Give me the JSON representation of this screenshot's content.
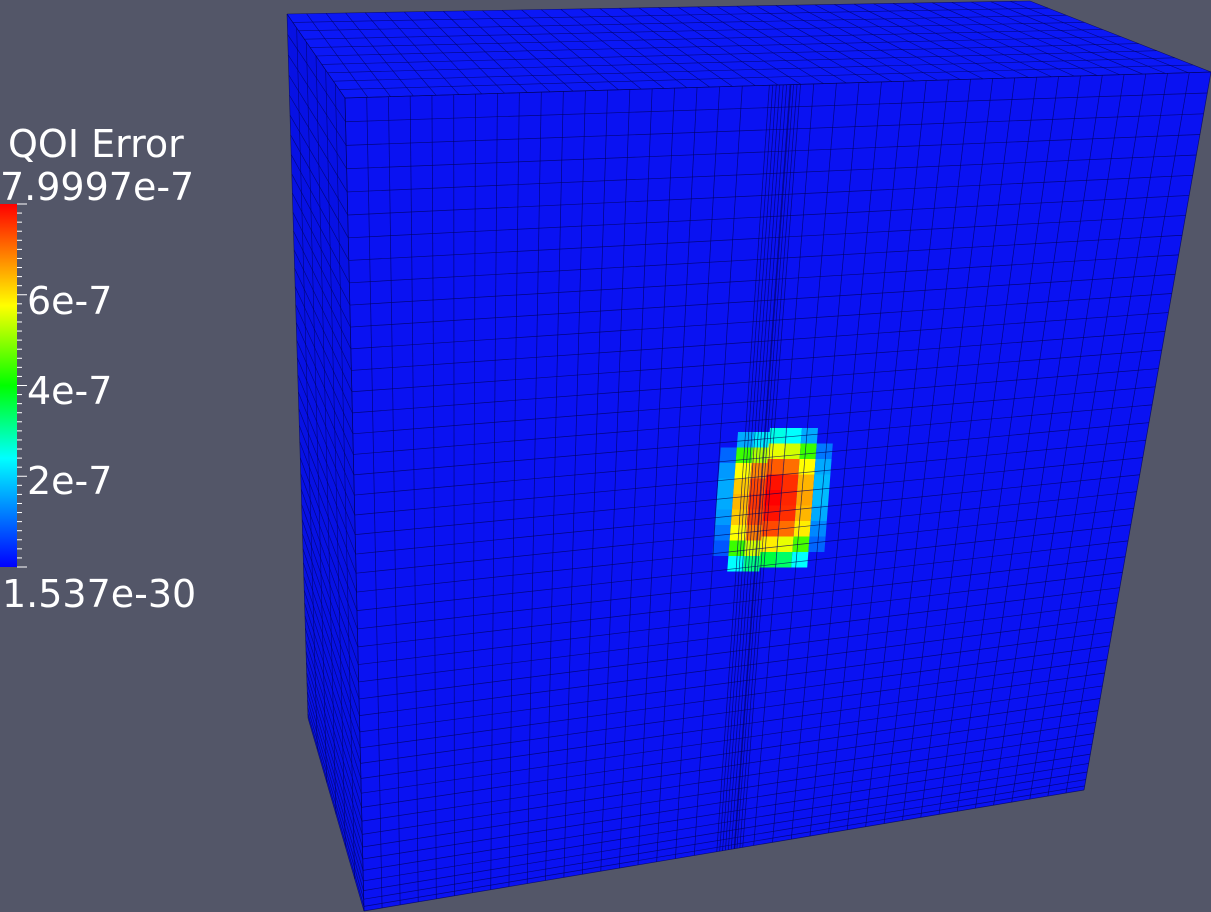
{
  "colorbar": {
    "title": "QOI Error",
    "max_label": "7.9997e-7",
    "min_label": "1.537e-30",
    "range": [
      1.537e-30,
      7.9997e-07
    ],
    "colormap": "rainbow",
    "ticks": [
      {
        "value": 6e-07,
        "label": "6e-7"
      },
      {
        "value": 4e-07,
        "label": "4e-7"
      },
      {
        "value": 2e-07,
        "label": "2e-7"
      }
    ]
  },
  "colors": {
    "background": "#535668",
    "mesh_base": "#0a12f2",
    "mesh_side": "#0711e4",
    "mesh_top": "#0b18f6",
    "grid_line": "#00035a"
  },
  "hotspot": {
    "values": [
      [
        0.0,
        0.2,
        0.28,
        0.32,
        0.3,
        0.2,
        0.0
      ],
      [
        0.12,
        0.55,
        0.65,
        0.7,
        0.68,
        0.55,
        0.14
      ],
      [
        0.18,
        0.72,
        0.85,
        0.9,
        0.88,
        0.72,
        0.2
      ],
      [
        0.2,
        0.78,
        0.92,
        0.98,
        0.95,
        0.8,
        0.22
      ],
      [
        0.2,
        0.8,
        0.94,
        1.0,
        0.96,
        0.82,
        0.22
      ],
      [
        0.18,
        0.78,
        0.92,
        0.98,
        0.95,
        0.8,
        0.2
      ],
      [
        0.14,
        0.72,
        0.86,
        0.92,
        0.88,
        0.74,
        0.16
      ],
      [
        0.1,
        0.55,
        0.68,
        0.74,
        0.7,
        0.56,
        0.12
      ],
      [
        0.0,
        0.3,
        0.4,
        0.45,
        0.42,
        0.3,
        0.0
      ]
    ]
  }
}
